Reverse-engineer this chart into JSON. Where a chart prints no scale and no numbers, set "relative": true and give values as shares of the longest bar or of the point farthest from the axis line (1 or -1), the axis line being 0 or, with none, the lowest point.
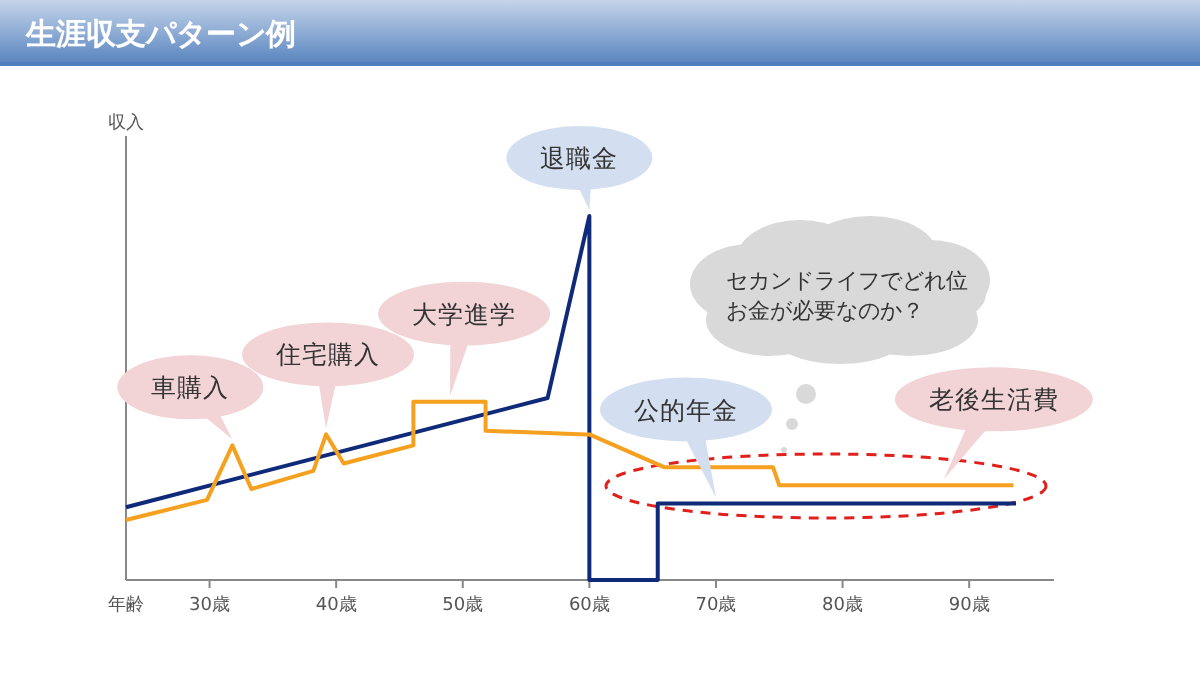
{
  "chart_data": {
    "type": "line",
    "title": "生涯収支パターン例",
    "xlabel": "年齢",
    "ylabel": "収入",
    "relative": true,
    "tick_labels": "x",
    "xlim": [
      23.4,
      96.7
    ],
    "xticks": [
      {
        "value": 30,
        "label": "30歳"
      },
      {
        "value": 40,
        "label": "40歳"
      },
      {
        "value": 50,
        "label": "50歳"
      },
      {
        "value": 60,
        "label": "60歳"
      },
      {
        "value": 70,
        "label": "70歳"
      },
      {
        "value": 80,
        "label": "80歳"
      },
      {
        "value": 90,
        "label": "90歳"
      }
    ],
    "series": [
      {
        "color": "#0f2a78",
        "x": [
          23.4,
          56.7,
          60,
          60,
          65.4,
          65.4,
          93.7
        ],
        "values": [
          0.2,
          0.5,
          1,
          0,
          0,
          0.21,
          0.21
        ]
      },
      {
        "color": "#f5a01e",
        "x": [
          23.4,
          29.8,
          31.8,
          33.3,
          38.2,
          39.2,
          40.6,
          46.1,
          46.1,
          51.8,
          51.8,
          59.7,
          60,
          65.9,
          74.5,
          75,
          93.5
        ],
        "values": [
          0.165,
          0.22,
          0.37,
          0.25,
          0.3,
          0.4,
          0.32,
          0.37,
          0.49,
          0.49,
          0.41,
          0.4,
          0.4,
          0.31,
          0.31,
          0.26,
          0.26
        ]
      }
    ],
    "annotations": [
      {
        "text": "車購入",
        "x": 31.8,
        "y": 0.37
      },
      {
        "text": "住宅購入",
        "x": 39.2,
        "y": 0.4
      },
      {
        "text": "大学進学",
        "x": 49,
        "y": 0.49
      },
      {
        "text": "退職金",
        "x": 60,
        "y": 1
      },
      {
        "text": "公的年金",
        "x": 70,
        "y": 0.21
      },
      {
        "text": "老後生活費",
        "x": 88,
        "y": 0.26
      },
      "セカンドライフでどれ位お金が必要なのか？"
    ]
  }
}
